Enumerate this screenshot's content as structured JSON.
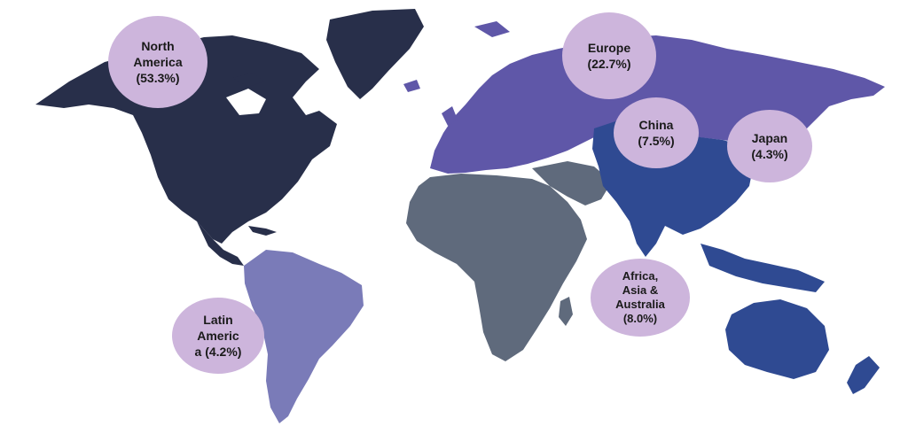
{
  "colors": {
    "north_america": "#282f4a",
    "europe": "#5f57a8",
    "asia_pacific": "#2f4a92",
    "africa_middle_east": "#5f6a7c",
    "latin_america": "#7a7bb8",
    "bubble": "#cdb5dc"
  },
  "regions": [
    {
      "id": "north-america",
      "lines": [
        "North",
        "America",
        "(53.3%)"
      ],
      "share": 53.3
    },
    {
      "id": "europe",
      "lines": [
        "Europe",
        "(22.7%)"
      ],
      "share": 22.7
    },
    {
      "id": "china",
      "lines": [
        "China",
        "(7.5%)"
      ],
      "share": 7.5
    },
    {
      "id": "japan",
      "lines": [
        "Japan",
        "(4.3%)"
      ],
      "share": 4.3
    },
    {
      "id": "africa-asia-australia",
      "lines": [
        "Africa,",
        "Asia &",
        "Australia",
        "(8.0%)"
      ],
      "share": 8.0
    },
    {
      "id": "latin-america",
      "lines": [
        "Latin",
        "Americ",
        "a (4.2%)"
      ],
      "share": 4.2
    }
  ]
}
